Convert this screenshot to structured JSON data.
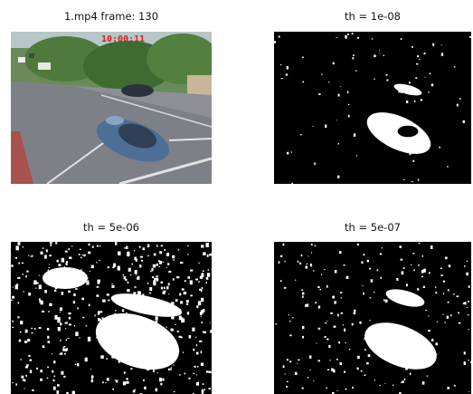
{
  "figure": {
    "panels": [
      {
        "id": "frame",
        "title": "1.mp4 frame: 130",
        "overlay_timestamp": "10:00:11",
        "kind": "video-frame"
      },
      {
        "id": "th1",
        "title": "th = 1e-08",
        "kind": "binary-mask",
        "noise_density": 0.08
      },
      {
        "id": "th2",
        "title": "th = 5e-06",
        "kind": "binary-mask",
        "noise_density": 0.42
      },
      {
        "id": "th3",
        "title": "th = 5e-07",
        "kind": "binary-mask",
        "noise_density": 0.2
      }
    ]
  },
  "colors": {
    "background": "#ffffff",
    "mask_background": "#000000",
    "mask_foreground": "#ffffff",
    "timestamp_text": "#d32020"
  }
}
